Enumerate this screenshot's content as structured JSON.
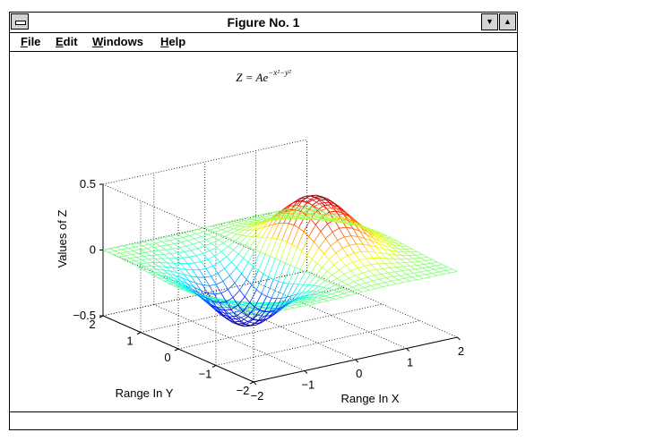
{
  "window": {
    "title": "Figure No. 1",
    "minimize_glyph": "▼",
    "maximize_glyph": "▲"
  },
  "menu": [
    {
      "label": "File",
      "accel": "F",
      "rest": "ile"
    },
    {
      "label": "Edit",
      "accel": "E",
      "rest": "dit"
    },
    {
      "label": "Windows",
      "accel": "W",
      "rest": "indows"
    },
    {
      "label": "Help",
      "accel": "H",
      "rest": "elp"
    }
  ],
  "chart_data": {
    "type": "surface-mesh",
    "title": "Z = Ae^(−x²−y²)",
    "xlabel": "Range In X",
    "ylabel": "Range In Y",
    "zlabel": "Values of Z",
    "xlim": [
      -2,
      2
    ],
    "ylim": [
      -2,
      2
    ],
    "zlim": [
      -0.5,
      0.5
    ],
    "x_ticks": [
      -2,
      -1,
      0,
      1,
      2
    ],
    "y_ticks": [
      -2,
      -1,
      0,
      1,
      2
    ],
    "z_ticks": [
      -0.5,
      0,
      0.5
    ],
    "x_tick_labels": [
      "−2",
      "−1",
      "0",
      "1",
      "2"
    ],
    "y_tick_labels": [
      "−2",
      "−1",
      "0",
      "1",
      "2"
    ],
    "z_tick_labels": [
      "−0.5",
      "0",
      "0.5"
    ],
    "function": "z = x * exp(-x^2 - y^2)",
    "grid": true,
    "colormap": "jet"
  }
}
